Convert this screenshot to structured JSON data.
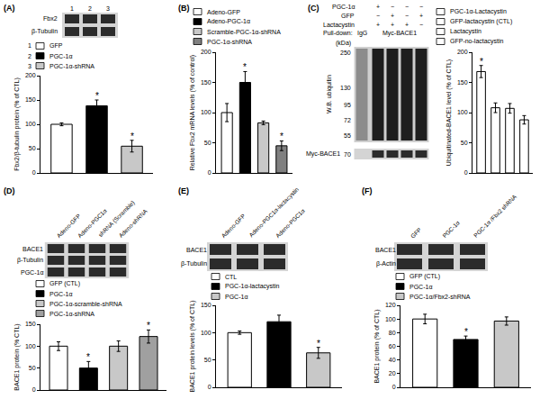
{
  "chart_data": [
    {
      "type": "bar",
      "title": "(A)",
      "y_label": "Fbx2/β-tubulin protein (% of CTL)",
      "categories": [
        "GFP",
        "PGC-1α",
        "PGC-1α-shRNA"
      ],
      "values": [
        100,
        138,
        55
      ],
      "errors": [
        3,
        12,
        12
      ],
      "significance": [
        null,
        "*",
        "*"
      ],
      "colors": [
        "#ffffff",
        "#000000",
        "#c8c8c8"
      ],
      "ylim": [
        0,
        200
      ],
      "yticks": [
        0,
        50,
        100,
        150,
        200
      ],
      "grid": false,
      "tick_labels": "y",
      "blot": {
        "lanes": [
          "1",
          "2",
          "3"
        ],
        "rows": [
          "Fbx2",
          "β-Tubulin"
        ]
      }
    },
    {
      "type": "bar",
      "title": "(B)",
      "y_label": "Relative Fbx2 mRNA levels (% of control)",
      "categories": [
        "Adeno-GFP",
        "Adeno-PGC-1α",
        "Scramble-PGC-1α-shRNA",
        "PGC-1α-shRNA"
      ],
      "values": [
        100,
        150,
        83,
        45
      ],
      "errors": [
        15,
        18,
        3,
        8
      ],
      "significance": [
        null,
        "*",
        null,
        "*"
      ],
      "colors": [
        "#ffffff",
        "#000000",
        "#c8c8c8",
        "#808080"
      ],
      "ylim": [
        0,
        200
      ],
      "yticks": [
        0,
        50,
        100,
        150,
        200
      ],
      "grid": false,
      "tick_labels": "y"
    },
    {
      "type": "bar",
      "title": "(C)",
      "y_label": "Ubiquitinated-BACE1 level (% of CTL)",
      "categories": [
        "PGC-1α-Lactacystin",
        "GFP-lactacystin (CTL)",
        "Lactacystin",
        "GFP-no-lactacystin"
      ],
      "values": [
        168,
        108,
        107,
        88
      ],
      "errors": [
        10,
        8,
        8,
        7
      ],
      "significance": [
        "*",
        null,
        null,
        null
      ],
      "colors": [
        "#ffffff",
        "#ffffff",
        "#ffffff",
        "#ffffff"
      ],
      "ylim": [
        0,
        200
      ],
      "yticks": [
        0,
        50,
        100,
        150,
        200
      ],
      "grid": false,
      "tick_labels": "y",
      "blot": {
        "conditions": [
          {
            "label": "PGC-1α",
            "marks": [
              "+",
              "−",
              "−",
              "−"
            ]
          },
          {
            "label": "GFP",
            "marks": [
              "−",
              "+",
              "−",
              "+"
            ]
          },
          {
            "label": "Lactacystin",
            "marks": [
              "+",
              "+",
              "+",
              "−"
            ]
          }
        ],
        "pulldown_label": "Pull-down:",
        "pulldown_lanes": [
          "IgG",
          "Myc-BACE1"
        ],
        "probe": "W.B. ubiquitin",
        "mw_unit": "(kDa)",
        "mw_markers": [
          250,
          130,
          95,
          72,
          55
        ],
        "lower_blot": {
          "label": "Myc-BACE1",
          "mw": 70
        }
      }
    },
    {
      "type": "bar",
      "title": "(D)",
      "y_label": "BACE1 protein (% CTL)",
      "categories": [
        "GFP (CTL)",
        "PGC-1α",
        "PGC-1α-scramble-shRNA",
        "PGC-1α-shRNA"
      ],
      "values": [
        100,
        50,
        100,
        122
      ],
      "errors": [
        10,
        15,
        12,
        15
      ],
      "significance": [
        null,
        "*",
        null,
        "*"
      ],
      "colors": [
        "#ffffff",
        "#000000",
        "#c8c8c8",
        "#a0a0a0"
      ],
      "ylim": [
        0,
        150
      ],
      "yticks": [
        0,
        50,
        100,
        150
      ],
      "grid": false,
      "tick_labels": "y",
      "blot": {
        "lanes": [
          "Adeno-GFP",
          "Adeno-PGC1α",
          "shRNA (Scramble)",
          "Adeno-shRNA"
        ],
        "rows": [
          "BACE1",
          "β-Tubulin",
          "PGC-1α"
        ]
      }
    },
    {
      "type": "bar",
      "title": "(E)",
      "y_label": "BACE1 protein levels (% of CTL)",
      "categories": [
        "CTL",
        "PGC-1α-lactacystin",
        "PGC-1α"
      ],
      "values": [
        100,
        120,
        63
      ],
      "errors": [
        3,
        12,
        10
      ],
      "significance": [
        null,
        null,
        "*"
      ],
      "colors": [
        "#ffffff",
        "#000000",
        "#c8c8c8"
      ],
      "ylim": [
        0,
        150
      ],
      "yticks": [
        0,
        50,
        100,
        150
      ],
      "grid": false,
      "tick_labels": "y",
      "blot": {
        "lanes": [
          "Adeno-GFP",
          "Adeno-PGC1α-lactacystin",
          "Adeno-PGC1α"
        ],
        "rows": [
          "BACE1",
          "β-Tubulin"
        ]
      }
    },
    {
      "type": "bar",
      "title": "(F)",
      "y_label": "BACE1 protein (% of CTL)",
      "categories": [
        "GFP (CTL)",
        "PGC-1α",
        "PGC-1α/Fbx2-shRNA"
      ],
      "values": [
        100,
        70,
        97
      ],
      "errors": [
        7,
        5,
        6
      ],
      "significance": [
        null,
        "*",
        null
      ],
      "colors": [
        "#ffffff",
        "#000000",
        "#c8c8c8"
      ],
      "ylim": [
        0,
        120
      ],
      "yticks": [
        0,
        20,
        40,
        60,
        80,
        100,
        120
      ],
      "grid": false,
      "tick_labels": "y",
      "blot": {
        "lanes": [
          "GFP",
          "PGC-1α",
          "PGC-1α /Fbx2 shRNA"
        ],
        "rows": [
          "BACE1",
          "β-Actin"
        ]
      }
    }
  ]
}
